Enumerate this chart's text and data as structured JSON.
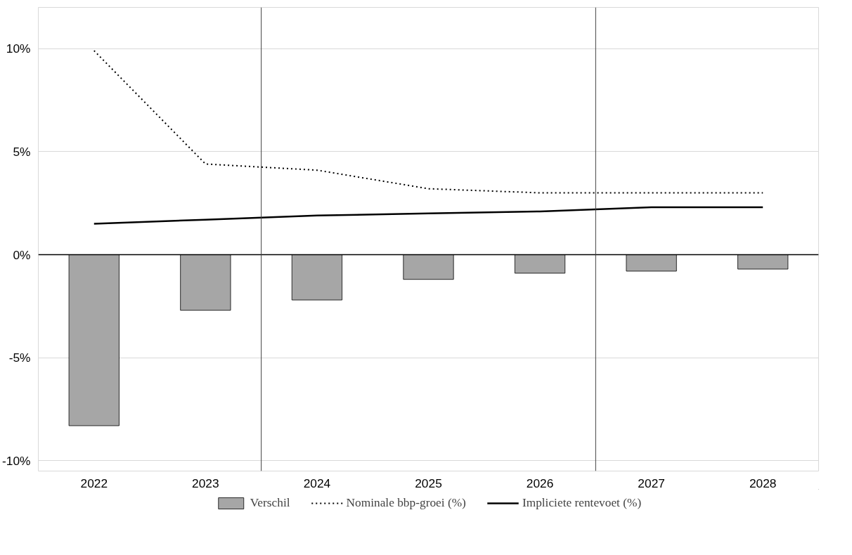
{
  "chart_data": {
    "type": "bar",
    "x": [
      2022,
      2023,
      2024,
      2025,
      2026,
      2027,
      2028
    ],
    "xlim": [
      2021.5,
      2028.5
    ],
    "xticks": [
      2022,
      2023,
      2024,
      2025,
      2026,
      2027,
      2028
    ],
    "ylim": [
      -10.5,
      12
    ],
    "yticks": [
      {
        "value": -10,
        "label": "-10%"
      },
      {
        "value": -5,
        "label": "-5%"
      },
      {
        "value": 0,
        "label": "0%"
      },
      {
        "value": 5,
        "label": "5%"
      },
      {
        "value": 10,
        "label": "10%"
      }
    ],
    "series": [
      {
        "name": "Verschil",
        "color": "#a6a6a6",
        "values": [
          -8.3,
          -2.7,
          -2.2,
          -1.2,
          -0.9,
          -0.8,
          -0.7
        ]
      },
      {
        "name": "Nominale bbp-groei (%)",
        "type": "line",
        "line_style": "dotted",
        "color": "#000000",
        "values": [
          9.9,
          4.4,
          4.1,
          3.2,
          3.0,
          3.0,
          3.0
        ]
      },
      {
        "name": "Impliciete rentevoet (%)",
        "type": "line",
        "line_style": "solid",
        "color": "#000000",
        "values": [
          1.5,
          1.7,
          1.9,
          2.0,
          2.1,
          2.3,
          2.3
        ]
      }
    ],
    "ref_lines": [
      {
        "axis": "x",
        "value": 2023.5,
        "color": "#404040"
      },
      {
        "axis": "x",
        "value": 2026.5,
        "color": "#404040"
      }
    ],
    "grid": "y",
    "legend": "bottom",
    "marker": "none"
  }
}
